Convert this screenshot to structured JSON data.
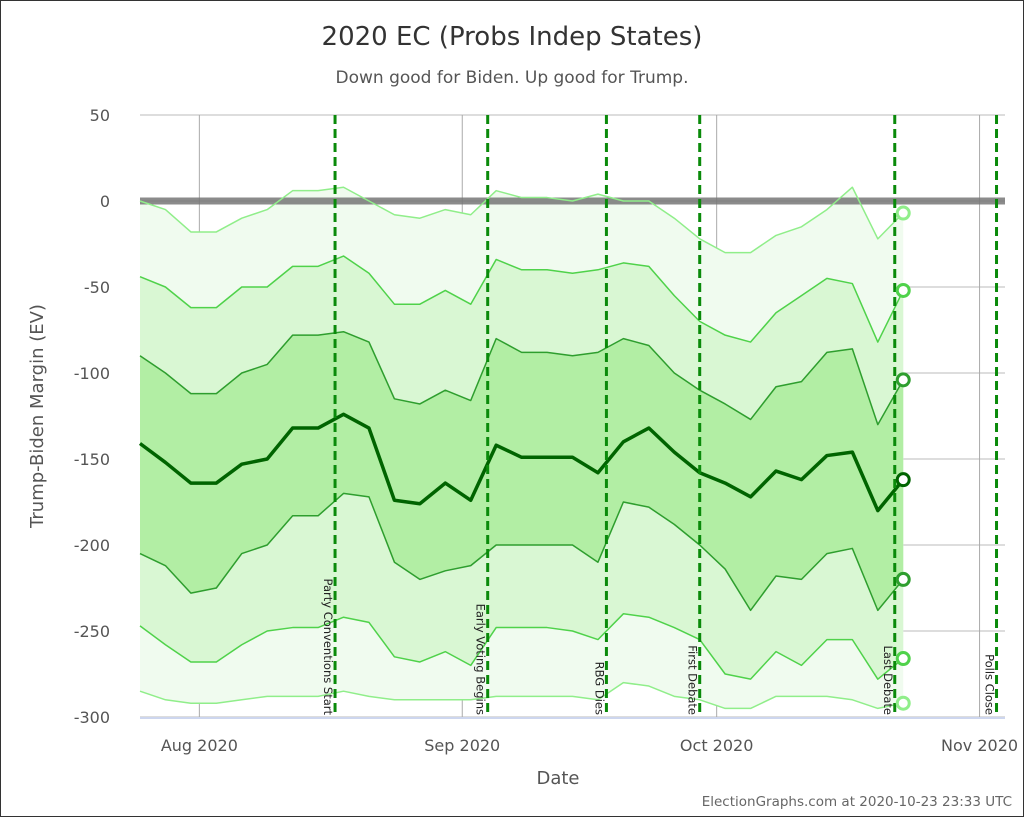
{
  "chart_data": {
    "type": "area",
    "title": "2020 EC (Probs Indep States)",
    "subtitle": "Down good for Biden. Up good for Trump.",
    "xlabel": "Date",
    "ylabel": "Trump-Biden Margin (EV)",
    "ylim": [
      -300,
      50
    ],
    "yticks": [
      50,
      0,
      -50,
      -100,
      -150,
      -200,
      -250,
      -300
    ],
    "xlim": [
      "2020-07-25",
      "2020-11-04"
    ],
    "xticks": [
      {
        "date": "2020-08-01",
        "label": "Aug 2020"
      },
      {
        "date": "2020-09-01",
        "label": "Sep 2020"
      },
      {
        "date": "2020-10-01",
        "label": "Oct 2020"
      },
      {
        "date": "2020-11-01",
        "label": "Nov 2020"
      }
    ],
    "grid": true,
    "reference_line": 0,
    "x": [
      "2020-07-25",
      "2020-07-28",
      "2020-07-31",
      "2020-08-03",
      "2020-08-06",
      "2020-08-09",
      "2020-08-12",
      "2020-08-15",
      "2020-08-18",
      "2020-08-21",
      "2020-08-24",
      "2020-08-27",
      "2020-08-30",
      "2020-09-02",
      "2020-09-05",
      "2020-09-08",
      "2020-09-11",
      "2020-09-14",
      "2020-09-17",
      "2020-09-20",
      "2020-09-23",
      "2020-09-26",
      "2020-09-29",
      "2020-10-02",
      "2020-10-05",
      "2020-10-08",
      "2020-10-11",
      "2020-10-14",
      "2020-10-17",
      "2020-10-20",
      "2020-10-23"
    ],
    "series": [
      {
        "key": "upper3",
        "color": "#90ee8a",
        "values": [
          0,
          -5,
          -18,
          -18,
          -10,
          -5,
          6,
          6,
          8,
          0,
          -8,
          -10,
          -5,
          -8,
          6,
          2,
          2,
          0,
          4,
          0,
          0,
          -10,
          -22,
          -30,
          -30,
          -20,
          -15,
          -5,
          8,
          -22,
          -7
        ]
      },
      {
        "key": "upper2",
        "color": "#4fd24a",
        "values": [
          -44,
          -50,
          -62,
          -62,
          -50,
          -50,
          -38,
          -38,
          -32,
          -42,
          -60,
          -60,
          -52,
          -60,
          -34,
          -40,
          -40,
          -42,
          -40,
          -36,
          -38,
          -55,
          -70,
          -78,
          -82,
          -65,
          -55,
          -45,
          -48,
          -82,
          -52
        ]
      },
      {
        "key": "upper1",
        "color": "#2e9e2e",
        "values": [
          -90,
          -100,
          -112,
          -112,
          -100,
          -95,
          -78,
          -78,
          -76,
          -82,
          -115,
          -118,
          -110,
          -116,
          -80,
          -88,
          -88,
          -90,
          -88,
          -80,
          -84,
          -100,
          -110,
          -118,
          -127,
          -108,
          -105,
          -88,
          -86,
          -130,
          -104
        ]
      },
      {
        "key": "median",
        "color": "#006400",
        "values": [
          -141,
          -152,
          -164,
          -164,
          -153,
          -150,
          -132,
          -132,
          -124,
          -132,
          -174,
          -176,
          -164,
          -174,
          -142,
          -149,
          -149,
          -149,
          -158,
          -140,
          -132,
          -146,
          -158,
          -164,
          -172,
          -157,
          -162,
          -148,
          -146,
          -180,
          -162
        ]
      },
      {
        "key": "lower1",
        "color": "#2e9e2e",
        "values": [
          -205,
          -212,
          -228,
          -225,
          -205,
          -200,
          -183,
          -183,
          -170,
          -172,
          -210,
          -220,
          -215,
          -212,
          -200,
          -200,
          -200,
          -200,
          -210,
          -175,
          -178,
          -188,
          -200,
          -214,
          -238,
          -218,
          -220,
          -205,
          -202,
          -238,
          -220
        ]
      },
      {
        "key": "lower2",
        "color": "#4fd24a",
        "values": [
          -247,
          -258,
          -268,
          -268,
          -258,
          -250,
          -248,
          -248,
          -242,
          -245,
          -265,
          -268,
          -262,
          -270,
          -248,
          -248,
          -248,
          -250,
          -255,
          -240,
          -242,
          -248,
          -255,
          -275,
          -278,
          -262,
          -270,
          -255,
          -255,
          -278,
          -266
        ]
      },
      {
        "key": "lower3",
        "color": "#90ee8a",
        "values": [
          -285,
          -290,
          -292,
          -292,
          -290,
          -288,
          -288,
          -288,
          -285,
          -288,
          -290,
          -290,
          -290,
          -290,
          -288,
          -288,
          -288,
          -288,
          -290,
          -280,
          -282,
          -288,
          -290,
          -295,
          -295,
          -288,
          -288,
          -288,
          -290,
          -295,
          -292
        ]
      }
    ],
    "band_colors": [
      "#f0fbef",
      "#d9f7d3",
      "#b2eea4"
    ],
    "events": [
      {
        "date": "2020-08-17",
        "label": "Party Conventions Start"
      },
      {
        "date": "2020-09-04",
        "label": "Early Voting Begins"
      },
      {
        "date": "2020-09-18",
        "label": "RBG Dies"
      },
      {
        "date": "2020-09-29",
        "label": "First Debate"
      },
      {
        "date": "2020-10-22",
        "label": "Last Debate"
      },
      {
        "date": "2020-11-03",
        "label": "Polls Close"
      }
    ],
    "event_color": "#0a8a0a"
  },
  "credit": "ElectionGraphs.com at 2020-10-23 23:33 UTC"
}
